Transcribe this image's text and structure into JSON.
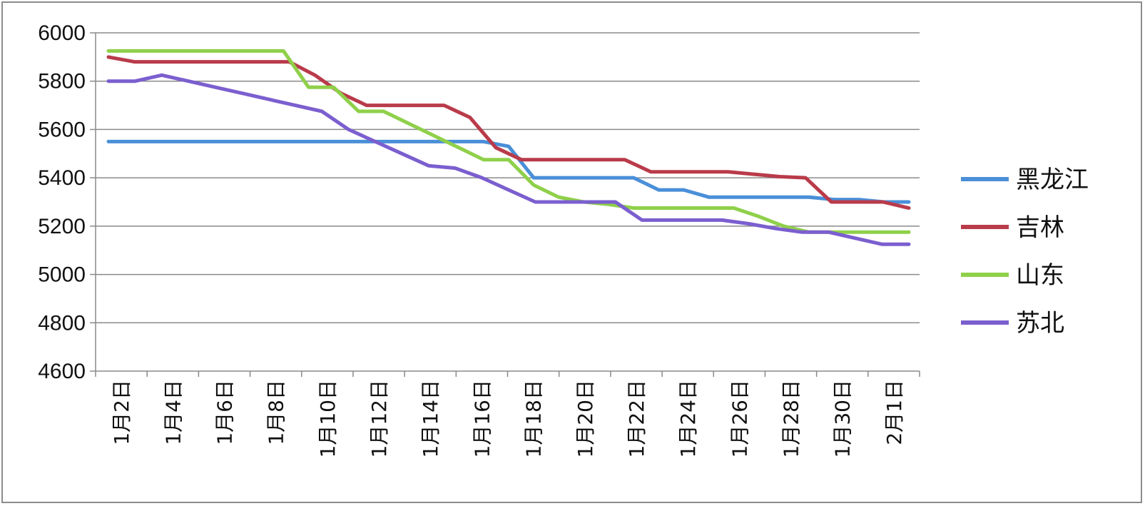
{
  "chart_data": {
    "type": "line",
    "title": "",
    "xlabel": "",
    "ylabel": "",
    "ylim": [
      4600,
      6000
    ],
    "yticks": [
      4600,
      4800,
      5000,
      5200,
      5400,
      5600,
      5800,
      6000
    ],
    "grid": "horizontal",
    "legend_position": "right",
    "x_labels": [
      "1月2日",
      "1月4日",
      "1月6日",
      "1月8日",
      "1月10日",
      "1月12日",
      "1月14日",
      "1月16日",
      "1月18日",
      "1月20日",
      "1月22日",
      "1月24日",
      "1月26日",
      "1月28日",
      "1月30日",
      "2月1日"
    ],
    "series": [
      {
        "name": "黑龙江",
        "color": "#4a8fd8",
        "values": [
          5550,
          5550,
          5550,
          5550,
          5550,
          5550,
          5550,
          5550,
          5550,
          5550,
          5550,
          5550,
          5550,
          5550,
          5550,
          5550,
          5530,
          5400,
          5400,
          5400,
          5400,
          5400,
          5350,
          5350,
          5320,
          5320,
          5320,
          5320,
          5320,
          5310,
          5310,
          5300,
          5300
        ]
      },
      {
        "name": "吉林",
        "color": "#b93b4a",
        "values": [
          5900,
          5880,
          5880,
          5880,
          5880,
          5880,
          5880,
          5880,
          5825,
          5750,
          5700,
          5700,
          5700,
          5700,
          5650,
          5525,
          5475,
          5475,
          5475,
          5475,
          5475,
          5425,
          5425,
          5425,
          5425,
          5415,
          5405,
          5400,
          5300,
          5300,
          5300,
          5275
        ]
      },
      {
        "name": "山东",
        "color": "#8fd04a",
        "values": [
          5925,
          5925,
          5925,
          5925,
          5925,
          5925,
          5925,
          5925,
          5775,
          5775,
          5675,
          5675,
          5625,
          5575,
          5525,
          5475,
          5475,
          5370,
          5320,
          5300,
          5290,
          5275,
          5275,
          5275,
          5275,
          5275,
          5240,
          5200,
          5175,
          5175,
          5175,
          5175,
          5175
        ]
      },
      {
        "name": "苏北",
        "color": "#7b5fcf",
        "values": [
          5800,
          5800,
          5825,
          5800,
          5775,
          5750,
          5725,
          5700,
          5675,
          5600,
          5550,
          5500,
          5450,
          5440,
          5400,
          5350,
          5300,
          5300,
          5300,
          5300,
          5225,
          5225,
          5225,
          5225,
          5210,
          5190,
          5175,
          5175,
          5150,
          5125,
          5125
        ]
      }
    ]
  }
}
